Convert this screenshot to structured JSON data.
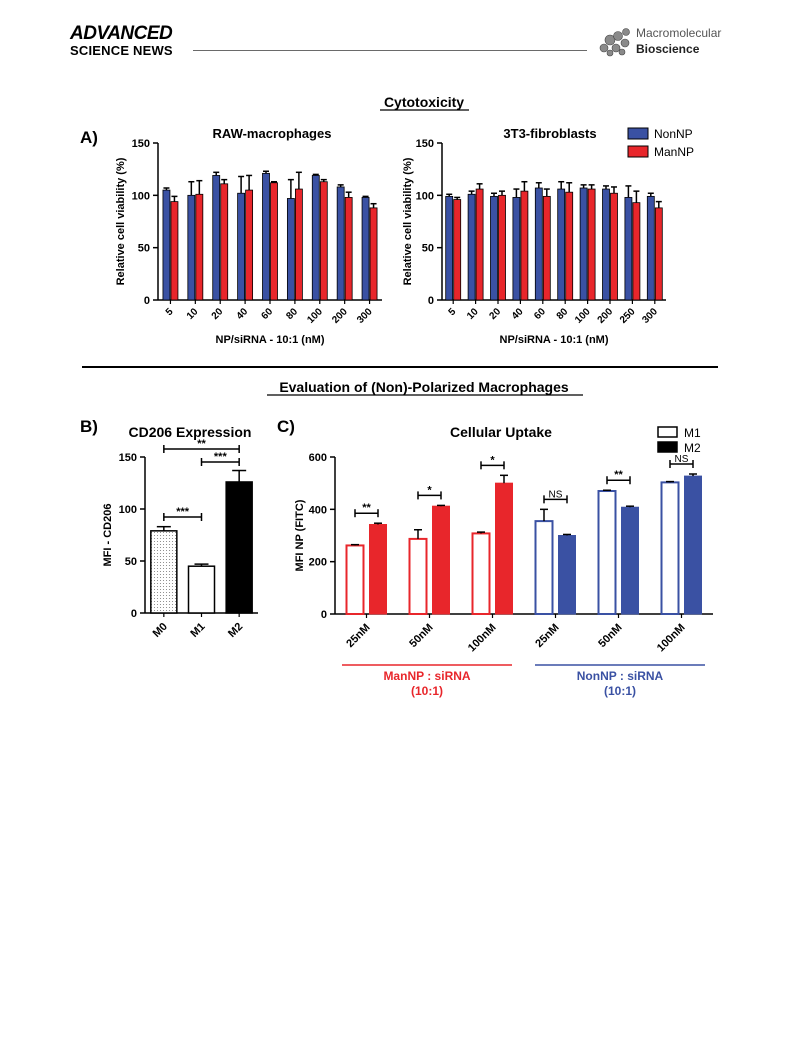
{
  "header": {
    "logo_line1": "ADVANCED",
    "logo_line2": "SCIENCE NEWS",
    "journal_line1": "Macromolecular",
    "journal_line2": "Bioscience"
  },
  "figure": {
    "section1_title": "Cytotoxicity",
    "section2_title": "Evaluation of (Non)-Polarized Macrophages",
    "panel_A": "A)",
    "panel_B": "B)",
    "panel_C": "C)"
  },
  "colors": {
    "nonnp": "#3a51a3",
    "mannp": "#e8262b",
    "black": "#000000"
  },
  "chart_data": [
    {
      "id": "raw",
      "type": "bar",
      "title": "RAW-macrophages",
      "xlabel": "NP/siRNA - 10:1 (nM)",
      "ylabel": "Relative cell viability (%)",
      "ylim": [
        0,
        150
      ],
      "yticks": [
        "0",
        "50",
        "100",
        "150"
      ],
      "categories": [
        "5",
        "10",
        "20",
        "40",
        "60",
        "80",
        "100",
        "200",
        "300"
      ],
      "series": [
        {
          "name": "NonNP",
          "values": [
            105,
            100,
            119,
            102,
            121,
            97,
            119,
            108,
            98
          ],
          "errors": [
            2,
            13,
            3,
            16,
            2,
            18,
            1,
            2,
            1
          ]
        },
        {
          "name": "ManNP",
          "values": [
            94,
            101,
            111,
            105,
            112,
            106,
            113,
            98,
            88
          ],
          "errors": [
            5,
            13,
            4,
            14,
            1,
            16,
            2,
            5,
            4
          ]
        }
      ]
    },
    {
      "id": "fib",
      "type": "bar",
      "title": "3T3-fibroblasts",
      "xlabel": "NP/siRNA - 10:1 (nM)",
      "ylabel": "Relative cell viability (%)",
      "ylim": [
        0,
        150
      ],
      "yticks": [
        "0",
        "50",
        "100",
        "150"
      ],
      "categories": [
        "5",
        "10",
        "20",
        "40",
        "60",
        "80",
        "100",
        "200",
        "250",
        "300"
      ],
      "legend": {
        "position": "top-right",
        "entries": [
          "NonNP",
          "ManNP"
        ]
      },
      "series": [
        {
          "name": "NonNP",
          "values": [
            99,
            101,
            99,
            98,
            107,
            106,
            107,
            106,
            98,
            99
          ],
          "errors": [
            2,
            3,
            3,
            8,
            5,
            7,
            3,
            3,
            11,
            3
          ]
        },
        {
          "name": "ManNP",
          "values": [
            96,
            106,
            100,
            104,
            99,
            103,
            106,
            102,
            93,
            88
          ],
          "errors": [
            2,
            5,
            4,
            9,
            7,
            9,
            4,
            6,
            11,
            6
          ]
        }
      ]
    },
    {
      "id": "cd206",
      "type": "bar",
      "title": "CD206 Expression",
      "ylabel": "MFI - CD206",
      "ylim": [
        0,
        150
      ],
      "yticks": [
        "0",
        "50",
        "100",
        "150"
      ],
      "categories": [
        "M0",
        "M1",
        "M2"
      ],
      "values": [
        79,
        45,
        126
      ],
      "errors": [
        4,
        2,
        11
      ],
      "fills": [
        "dotted",
        "white",
        "black"
      ],
      "significance": [
        {
          "from": 0,
          "to": 1,
          "label": "***"
        },
        {
          "from": 0,
          "to": 2,
          "label": "**"
        },
        {
          "from": 1,
          "to": 2,
          "label": "***"
        }
      ]
    },
    {
      "id": "uptake",
      "type": "bar",
      "title": "Cellular Uptake",
      "ylabel": "MFI NP (FITC)",
      "ylim": [
        0,
        600
      ],
      "yticks": [
        "0",
        "200",
        "400",
        "600"
      ],
      "categories": [
        "25nM",
        "50nM",
        "100nM",
        "25nM",
        "50nM",
        "100nM"
      ],
      "groups": [
        {
          "label_line1": "ManNP : siRNA",
          "label_line2": "(10:1)",
          "color": "#e8262b"
        },
        {
          "label_line1": "NonNP : siRNA",
          "label_line2": "(10:1)",
          "color": "#3a51a3"
        }
      ],
      "legend": {
        "position": "top-right",
        "entries": [
          "M1",
          "M2"
        ]
      },
      "series": [
        {
          "name": "M1",
          "values": [
            262,
            287,
            308,
            355,
            470,
            503
          ],
          "errors": [
            3,
            35,
            5,
            45,
            3,
            3
          ]
        },
        {
          "name": "M2",
          "values": [
            342,
            412,
            500,
            300,
            408,
            527
          ],
          "errors": [
            5,
            3,
            30,
            4,
            4,
            8
          ]
        }
      ],
      "significance": [
        "**",
        "*",
        "*",
        "NS",
        "**",
        "NS"
      ]
    }
  ]
}
